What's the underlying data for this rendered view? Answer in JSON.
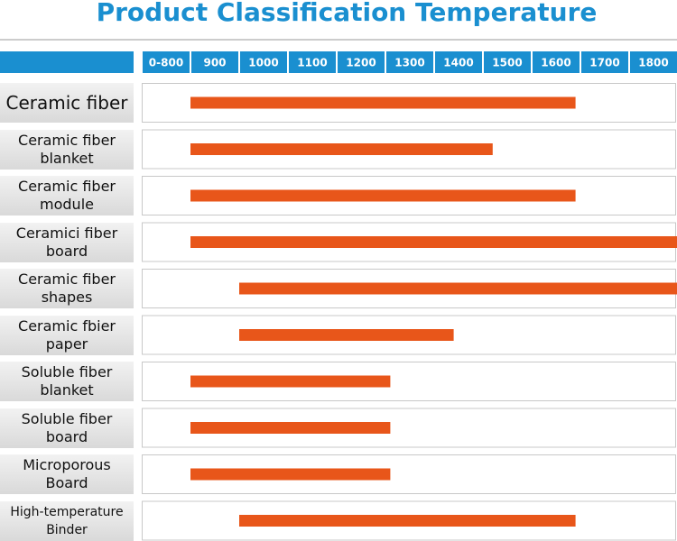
{
  "chart_data": {
    "type": "range-bar",
    "title": "Product Classification Temperature",
    "categories": [
      "Ceramic fiber",
      "Ceramic fiber blanket",
      "Ceramic fiber module",
      "Ceramici fiber board",
      "Ceramic fiber shapes",
      "Ceramic fbier paper",
      "Soluble fiber blanket",
      "Soluble fiber board",
      "Microporous Board",
      "High-temperature Binder"
    ],
    "low": [
      900,
      900,
      900,
      900,
      1000,
      1000,
      900,
      900,
      900,
      1000
    ],
    "high": [
      1690,
      1520,
      1690,
      1900,
      1900,
      1440,
      1310,
      1310,
      1310,
      1690
    ],
    "color": "#e8561a",
    "xlim": [
      800,
      1900
    ],
    "xticks": [
      {
        "value": 800,
        "label": "0-800"
      },
      900,
      1000,
      1100,
      1200,
      1300,
      1400,
      1500,
      1600,
      1700,
      1800
    ]
  }
}
